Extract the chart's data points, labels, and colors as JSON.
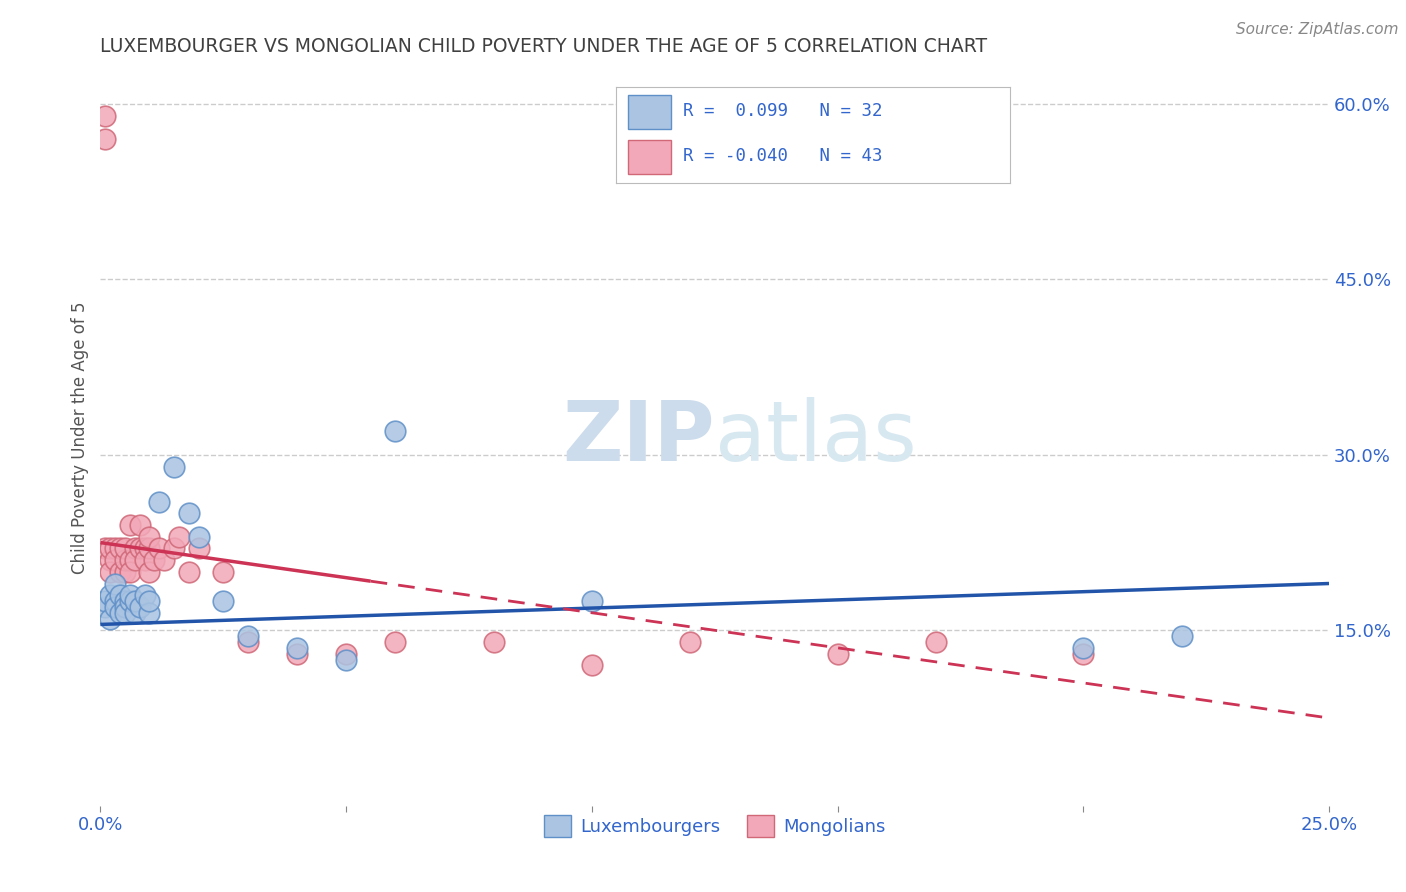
{
  "title": "LUXEMBOURGER VS MONGOLIAN CHILD POVERTY UNDER THE AGE OF 5 CORRELATION CHART",
  "source": "Source: ZipAtlas.com",
  "ylabel": "Child Poverty Under the Age of 5",
  "y_ticks_right": [
    0.15,
    0.3,
    0.45,
    0.6
  ],
  "xlim": [
    0.0,
    0.25
  ],
  "ylim": [
    0.0,
    0.63
  ],
  "blue_color": "#aac4e2",
  "pink_color": "#f2a8b8",
  "blue_edge": "#6090c8",
  "pink_edge": "#d06878",
  "blue_line_color": "#2255aa",
  "pink_line_color": "#cc3355",
  "background_color": "#ffffff",
  "grid_color": "#cccccc",
  "title_color": "#404040",
  "watermark_color": "#ccdcec",
  "blue_x": [
    0.001,
    0.001,
    0.002,
    0.002,
    0.003,
    0.003,
    0.003,
    0.004,
    0.004,
    0.005,
    0.005,
    0.005,
    0.006,
    0.006,
    0.007,
    0.007,
    0.008,
    0.009,
    0.01,
    0.01,
    0.012,
    0.015,
    0.018,
    0.02,
    0.025,
    0.03,
    0.04,
    0.05,
    0.06,
    0.1,
    0.2,
    0.22
  ],
  "blue_y": [
    0.17,
    0.175,
    0.18,
    0.16,
    0.175,
    0.17,
    0.19,
    0.165,
    0.18,
    0.175,
    0.17,
    0.165,
    0.175,
    0.18,
    0.165,
    0.175,
    0.17,
    0.18,
    0.165,
    0.175,
    0.26,
    0.29,
    0.25,
    0.23,
    0.175,
    0.145,
    0.135,
    0.125,
    0.32,
    0.175,
    0.135,
    0.145
  ],
  "pink_x": [
    0.001,
    0.001,
    0.001,
    0.002,
    0.002,
    0.002,
    0.003,
    0.003,
    0.004,
    0.004,
    0.005,
    0.005,
    0.005,
    0.006,
    0.006,
    0.006,
    0.007,
    0.007,
    0.008,
    0.008,
    0.009,
    0.009,
    0.01,
    0.01,
    0.01,
    0.011,
    0.012,
    0.013,
    0.015,
    0.016,
    0.018,
    0.02,
    0.025,
    0.03,
    0.04,
    0.05,
    0.06,
    0.08,
    0.1,
    0.12,
    0.15,
    0.17,
    0.2
  ],
  "pink_y": [
    0.57,
    0.59,
    0.22,
    0.21,
    0.22,
    0.2,
    0.22,
    0.21,
    0.2,
    0.22,
    0.2,
    0.21,
    0.22,
    0.24,
    0.21,
    0.2,
    0.22,
    0.21,
    0.24,
    0.22,
    0.22,
    0.21,
    0.2,
    0.22,
    0.23,
    0.21,
    0.22,
    0.21,
    0.22,
    0.23,
    0.2,
    0.22,
    0.2,
    0.14,
    0.13,
    0.13,
    0.14,
    0.14,
    0.12,
    0.14,
    0.13,
    0.14,
    0.13
  ],
  "bottom_legend": [
    "Luxembourgers",
    "Mongolians"
  ]
}
